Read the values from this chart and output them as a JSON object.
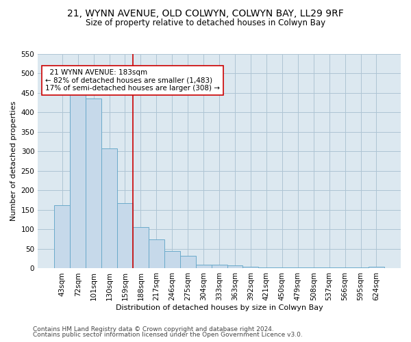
{
  "title1": "21, WYNN AVENUE, OLD COLWYN, COLWYN BAY, LL29 9RF",
  "title2": "Size of property relative to detached houses in Colwyn Bay",
  "xlabel": "Distribution of detached houses by size in Colwyn Bay",
  "ylabel": "Number of detached properties",
  "categories": [
    "43sqm",
    "72sqm",
    "101sqm",
    "130sqm",
    "159sqm",
    "188sqm",
    "217sqm",
    "246sqm",
    "275sqm",
    "304sqm",
    "333sqm",
    "363sqm",
    "392sqm",
    "421sqm",
    "450sqm",
    "479sqm",
    "508sqm",
    "537sqm",
    "566sqm",
    "595sqm",
    "624sqm"
  ],
  "values": [
    163,
    450,
    436,
    307,
    168,
    106,
    74,
    45,
    33,
    10,
    10,
    8,
    5,
    2,
    2,
    2,
    2,
    2,
    2,
    2,
    5
  ],
  "bar_color": "#c6d9ea",
  "bar_edge_color": "#6aaaca",
  "vline_color": "#cc0000",
  "annotation_text": "  21 WYNN AVENUE: 183sqm\n← 82% of detached houses are smaller (1,483)\n17% of semi-detached houses are larger (308) →",
  "annotation_box_color": "white",
  "annotation_box_edge_color": "#cc0000",
  "ylim": [
    0,
    550
  ],
  "yticks": [
    0,
    50,
    100,
    150,
    200,
    250,
    300,
    350,
    400,
    450,
    500,
    550
  ],
  "grid_color": "#aec4d4",
  "bg_color": "#dce8f0",
  "footer1": "Contains HM Land Registry data © Crown copyright and database right 2024.",
  "footer2": "Contains public sector information licensed under the Open Government Licence v3.0.",
  "title1_fontsize": 10,
  "title2_fontsize": 8.5,
  "xlabel_fontsize": 8,
  "ylabel_fontsize": 8,
  "tick_fontsize": 7.5,
  "annotation_fontsize": 7.5,
  "footer_fontsize": 6.5
}
